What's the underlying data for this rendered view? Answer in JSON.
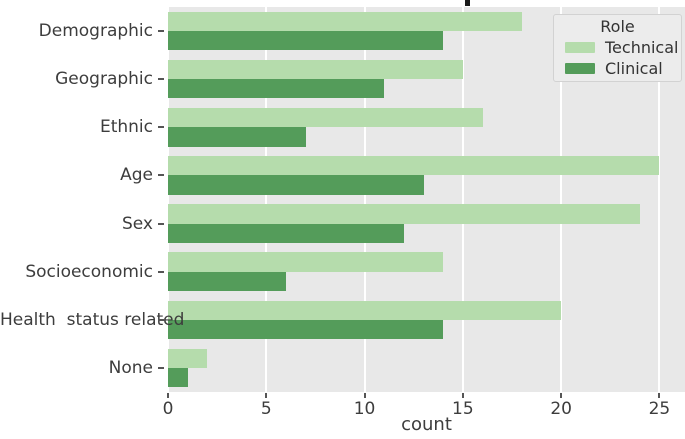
{
  "chart_data": {
    "type": "bar",
    "orientation": "horizontal",
    "xlabel": "count",
    "ylabel": "",
    "categories": [
      "Demographic",
      "Geographic",
      "Ethnic",
      "Age",
      "Sex",
      "Socioeconomic",
      "Health  status related",
      "None"
    ],
    "series": [
      {
        "name": "Technical",
        "color": "#b5dcac",
        "values": [
          18,
          15,
          16,
          25,
          24,
          14,
          20,
          2
        ]
      },
      {
        "name": "Clinical",
        "color": "#549c5a",
        "values": [
          14,
          11,
          7,
          13,
          12,
          6,
          14,
          1
        ]
      }
    ],
    "xticks": [
      0,
      5,
      10,
      15,
      20,
      25
    ],
    "xlim": [
      0,
      26.3
    ],
    "grid": "vertical-white-on-gray",
    "legend": {
      "title": "Role",
      "position": "upper-right"
    }
  },
  "colors": {
    "plot_bg": "#e8e8e8",
    "gridline": "#ffffff",
    "technical": "#b5dcac",
    "clinical": "#549c5a",
    "text": "#3d3d3d",
    "legend_bg": "#ececec",
    "legend_border": "#d2d2d2"
  }
}
